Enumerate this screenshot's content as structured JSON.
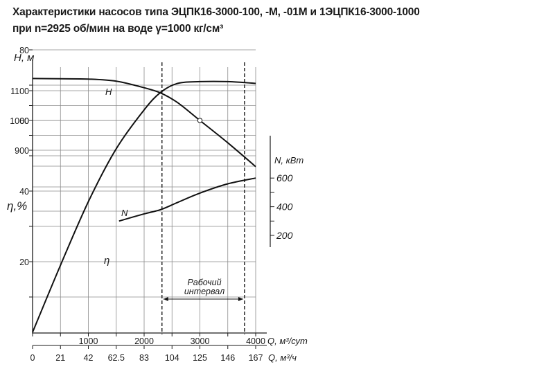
{
  "header": {
    "title_line1": "Характеристики насосов типа  ЭЦПК16-3000-100, -М, -01М и 1ЭЦПК16-3000-1000",
    "title_line2": "при n=2925 об/мин на воде γ=1000 кг/см³"
  },
  "chart_data": {
    "type": "line",
    "axes": {
      "H": {
        "label": "H, м",
        "ticks": [
          "900",
          "1000",
          "1100"
        ],
        "range": [
          850,
          1150
        ]
      },
      "eta": {
        "label": "η,%",
        "ticks": [
          "20",
          "40",
          "60",
          "80"
        ],
        "range": [
          10,
          90
        ]
      },
      "N": {
        "label": "N, кВт",
        "ticks": [
          "200",
          "400",
          "600"
        ],
        "range": [
          100,
          650
        ]
      },
      "Q_day": {
        "label": "Q, м³/сут",
        "ticks": [
          "1000",
          "2000",
          "3000",
          "4000"
        ],
        "range": [
          0,
          4000
        ]
      },
      "Q_hour": {
        "label": "Q, м³/ч",
        "ticks": [
          "0",
          "21",
          "42",
          "62.5",
          "83",
          "104",
          "125",
          "146",
          "167"
        ]
      }
    },
    "series": [
      {
        "name": "H",
        "axis": "H",
        "x": [
          0,
          500,
          1000,
          1500,
          2000,
          2300,
          2600,
          3000,
          3500,
          4000
        ],
        "y": [
          1141,
          1140,
          1139,
          1132,
          1110,
          1092,
          1060,
          1000,
          925,
          845
        ]
      },
      {
        "name": "N",
        "axis": "N",
        "x": [
          1550,
          2000,
          2300,
          2600,
          3000,
          3500,
          4000
        ],
        "y": [
          300,
          350,
          380,
          430,
          495,
          560,
          600
        ]
      },
      {
        "name": "η",
        "axis": "eta",
        "x": [
          0,
          500,
          1000,
          1500,
          2000,
          2300,
          2600,
          3000,
          3500,
          4000
        ],
        "y": [
          0,
          19,
          37,
          52,
          63,
          68,
          70.5,
          71,
          71,
          70.5
        ]
      }
    ],
    "marker": {
      "series": "H",
      "x": 3000,
      "y": 1000
    },
    "working_interval": {
      "label_line1": "Рабочий",
      "label_line2": "интервал",
      "x": [
        2320,
        3800
      ]
    },
    "grid": true
  }
}
